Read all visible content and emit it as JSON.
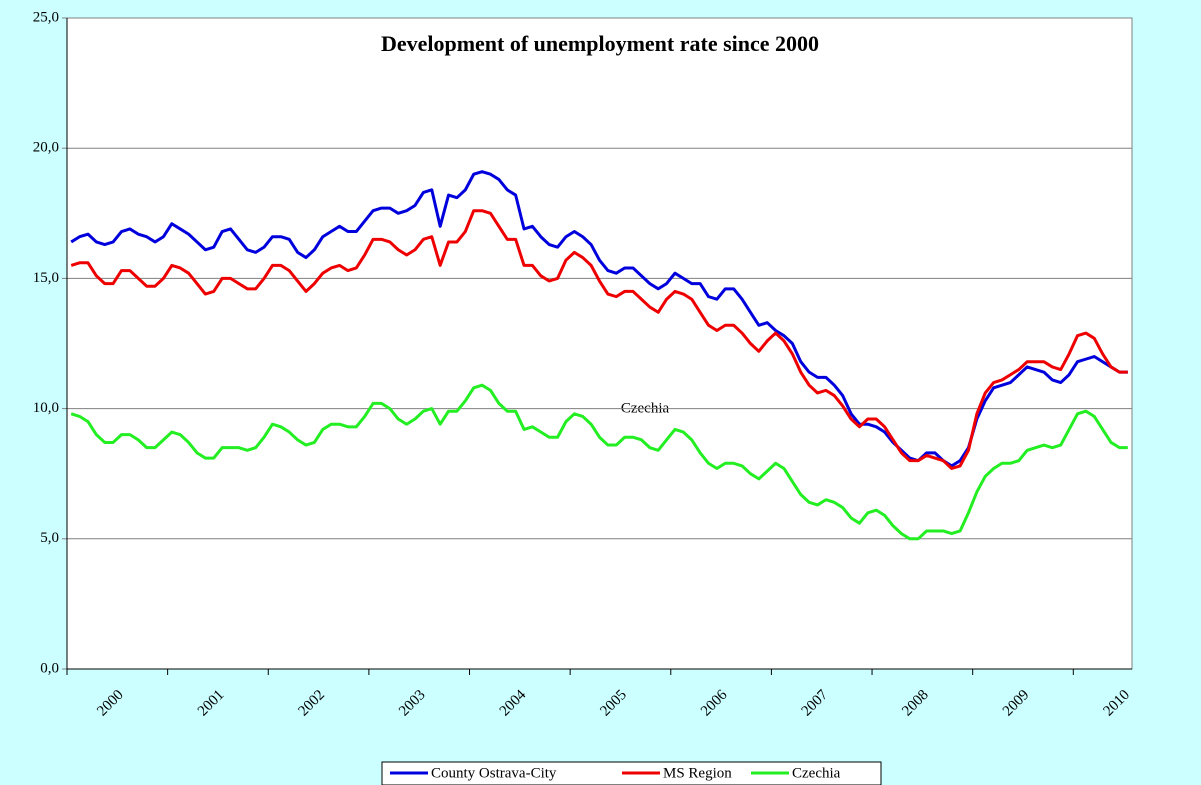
{
  "chart_data": {
    "type": "line",
    "title": "Development of unemployment rate since 2000",
    "annotations": [
      "Czechia"
    ],
    "categories": [
      null,
      null,
      null,
      null,
      null,
      null,
      "2000",
      null,
      null,
      null,
      null,
      null,
      null,
      null,
      null,
      null,
      null,
      null,
      "2001",
      null,
      null,
      null,
      null,
      null,
      null,
      null,
      null,
      null,
      null,
      null,
      "2002",
      null,
      null,
      null,
      null,
      null,
      null,
      null,
      null,
      null,
      null,
      null,
      "2003",
      null,
      null,
      null,
      null,
      null,
      null,
      null,
      null,
      null,
      null,
      null,
      "2004",
      null,
      null,
      null,
      null,
      null,
      null,
      null,
      null,
      null,
      null,
      null,
      "2005",
      null,
      null,
      null,
      null,
      null,
      null,
      null,
      null,
      null,
      null,
      null,
      "2006",
      null,
      null,
      null,
      null,
      null,
      null,
      null,
      null,
      null,
      null,
      null,
      "2007",
      null,
      null,
      null,
      null,
      null,
      null,
      null,
      null,
      null,
      null,
      null,
      "2008",
      null,
      null,
      null,
      null,
      null,
      null,
      null,
      null,
      null,
      null,
      null,
      "2009",
      null,
      null,
      null,
      null,
      null,
      null,
      null,
      null,
      null,
      null,
      null,
      "2010"
    ],
    "series": [
      {
        "name": "County Ostrava-City",
        "color": "#0000dd",
        "values": [
          16.4,
          16.6,
          16.7,
          16.4,
          16.3,
          16.4,
          16.8,
          16.9,
          16.7,
          16.6,
          16.4,
          16.6,
          17.1,
          16.9,
          16.7,
          16.4,
          16.1,
          16.2,
          16.8,
          16.9,
          16.5,
          16.1,
          16.0,
          16.2,
          16.6,
          16.6,
          16.5,
          16.0,
          15.8,
          16.1,
          16.6,
          16.8,
          17.0,
          16.8,
          16.8,
          17.2,
          17.6,
          17.7,
          17.7,
          17.5,
          17.6,
          17.8,
          18.3,
          18.4,
          17.0,
          18.2,
          18.1,
          18.4,
          19.0,
          19.1,
          19.0,
          18.8,
          18.4,
          18.2,
          16.9,
          17.0,
          16.6,
          16.3,
          16.2,
          16.6,
          16.8,
          16.6,
          16.3,
          15.7,
          15.3,
          15.2,
          15.4,
          15.4,
          15.1,
          14.8,
          14.6,
          14.8,
          15.2,
          15.0,
          14.8,
          14.8,
          14.3,
          14.2,
          14.6,
          14.6,
          14.2,
          13.7,
          13.2,
          13.3,
          13.0,
          12.8,
          12.5,
          11.8,
          11.4,
          11.2,
          11.2,
          10.9,
          10.5,
          9.8,
          9.4,
          9.4,
          9.3,
          9.1,
          8.7,
          8.4,
          8.1,
          8.0,
          8.3,
          8.3,
          8.0,
          7.8,
          8.0,
          8.5,
          9.6,
          10.3,
          10.8,
          10.9,
          11.0,
          11.3,
          11.6,
          11.5,
          11.4,
          11.1,
          11.0,
          11.3,
          11.8,
          11.9,
          12.0,
          11.8,
          11.6,
          11.4,
          11.4
        ]
      },
      {
        "name": "MS Region",
        "color": "#ee0000",
        "values": [
          15.5,
          15.6,
          15.6,
          15.1,
          14.8,
          14.8,
          15.3,
          15.3,
          15.0,
          14.7,
          14.7,
          15.0,
          15.5,
          15.4,
          15.2,
          14.8,
          14.4,
          14.5,
          15.0,
          15.0,
          14.8,
          14.6,
          14.6,
          15.0,
          15.5,
          15.5,
          15.3,
          14.9,
          14.5,
          14.8,
          15.2,
          15.4,
          15.5,
          15.3,
          15.4,
          15.9,
          16.5,
          16.5,
          16.4,
          16.1,
          15.9,
          16.1,
          16.5,
          16.6,
          15.5,
          16.4,
          16.4,
          16.8,
          17.6,
          17.6,
          17.5,
          17.0,
          16.5,
          16.5,
          15.5,
          15.5,
          15.1,
          14.9,
          15.0,
          15.7,
          16.0,
          15.8,
          15.5,
          14.9,
          14.4,
          14.3,
          14.5,
          14.5,
          14.2,
          13.9,
          13.7,
          14.2,
          14.5,
          14.4,
          14.2,
          13.7,
          13.2,
          13.0,
          13.2,
          13.2,
          12.9,
          12.5,
          12.2,
          12.6,
          12.9,
          12.6,
          12.1,
          11.4,
          10.9,
          10.6,
          10.7,
          10.5,
          10.1,
          9.6,
          9.3,
          9.6,
          9.6,
          9.3,
          8.8,
          8.3,
          8.0,
          8.0,
          8.2,
          8.1,
          8.0,
          7.7,
          7.8,
          8.4,
          9.8,
          10.6,
          11.0,
          11.1,
          11.3,
          11.5,
          11.8,
          11.8,
          11.8,
          11.6,
          11.5,
          12.1,
          12.8,
          12.9,
          12.7,
          12.1,
          11.6,
          11.4,
          11.4
        ]
      },
      {
        "name": "Czechia",
        "color": "#22ee22",
        "values": [
          9.8,
          9.7,
          9.5,
          9.0,
          8.7,
          8.7,
          9.0,
          9.0,
          8.8,
          8.5,
          8.5,
          8.8,
          9.1,
          9.0,
          8.7,
          8.3,
          8.1,
          8.1,
          8.5,
          8.5,
          8.5,
          8.4,
          8.5,
          8.9,
          9.4,
          9.3,
          9.1,
          8.8,
          8.6,
          8.7,
          9.2,
          9.4,
          9.4,
          9.3,
          9.3,
          9.7,
          10.2,
          10.2,
          10.0,
          9.6,
          9.4,
          9.6,
          9.9,
          10.0,
          9.4,
          9.9,
          9.9,
          10.3,
          10.8,
          10.9,
          10.7,
          10.2,
          9.9,
          9.9,
          9.2,
          9.3,
          9.1,
          8.9,
          8.9,
          9.5,
          9.8,
          9.7,
          9.4,
          8.9,
          8.6,
          8.6,
          8.9,
          8.9,
          8.8,
          8.5,
          8.4,
          8.8,
          9.2,
          9.1,
          8.8,
          8.3,
          7.9,
          7.7,
          7.9,
          7.9,
          7.8,
          7.5,
          7.3,
          7.6,
          7.9,
          7.7,
          7.2,
          6.7,
          6.4,
          6.3,
          6.5,
          6.4,
          6.2,
          5.8,
          5.6,
          6.0,
          6.1,
          5.9,
          5.5,
          5.2,
          5.0,
          5.0,
          5.3,
          5.3,
          5.3,
          5.2,
          5.3,
          6.0,
          6.8,
          7.4,
          7.7,
          7.9,
          7.9,
          8.0,
          8.4,
          8.5,
          8.6,
          8.5,
          8.6,
          9.2,
          9.8,
          9.9,
          9.7,
          9.2,
          8.7,
          8.5,
          8.5
        ]
      }
    ],
    "ylim": [
      0,
      25
    ],
    "yticks": [
      {
        "value": 0,
        "label": "0,0"
      },
      {
        "value": 5,
        "label": "5,0"
      },
      {
        "value": 10,
        "label": "10,0"
      },
      {
        "value": 15,
        "label": "15,0"
      },
      {
        "value": 20,
        "label": "20,0"
      },
      {
        "value": 25,
        "label": "25,0"
      }
    ],
    "grid": true,
    "legend": "bottom"
  }
}
